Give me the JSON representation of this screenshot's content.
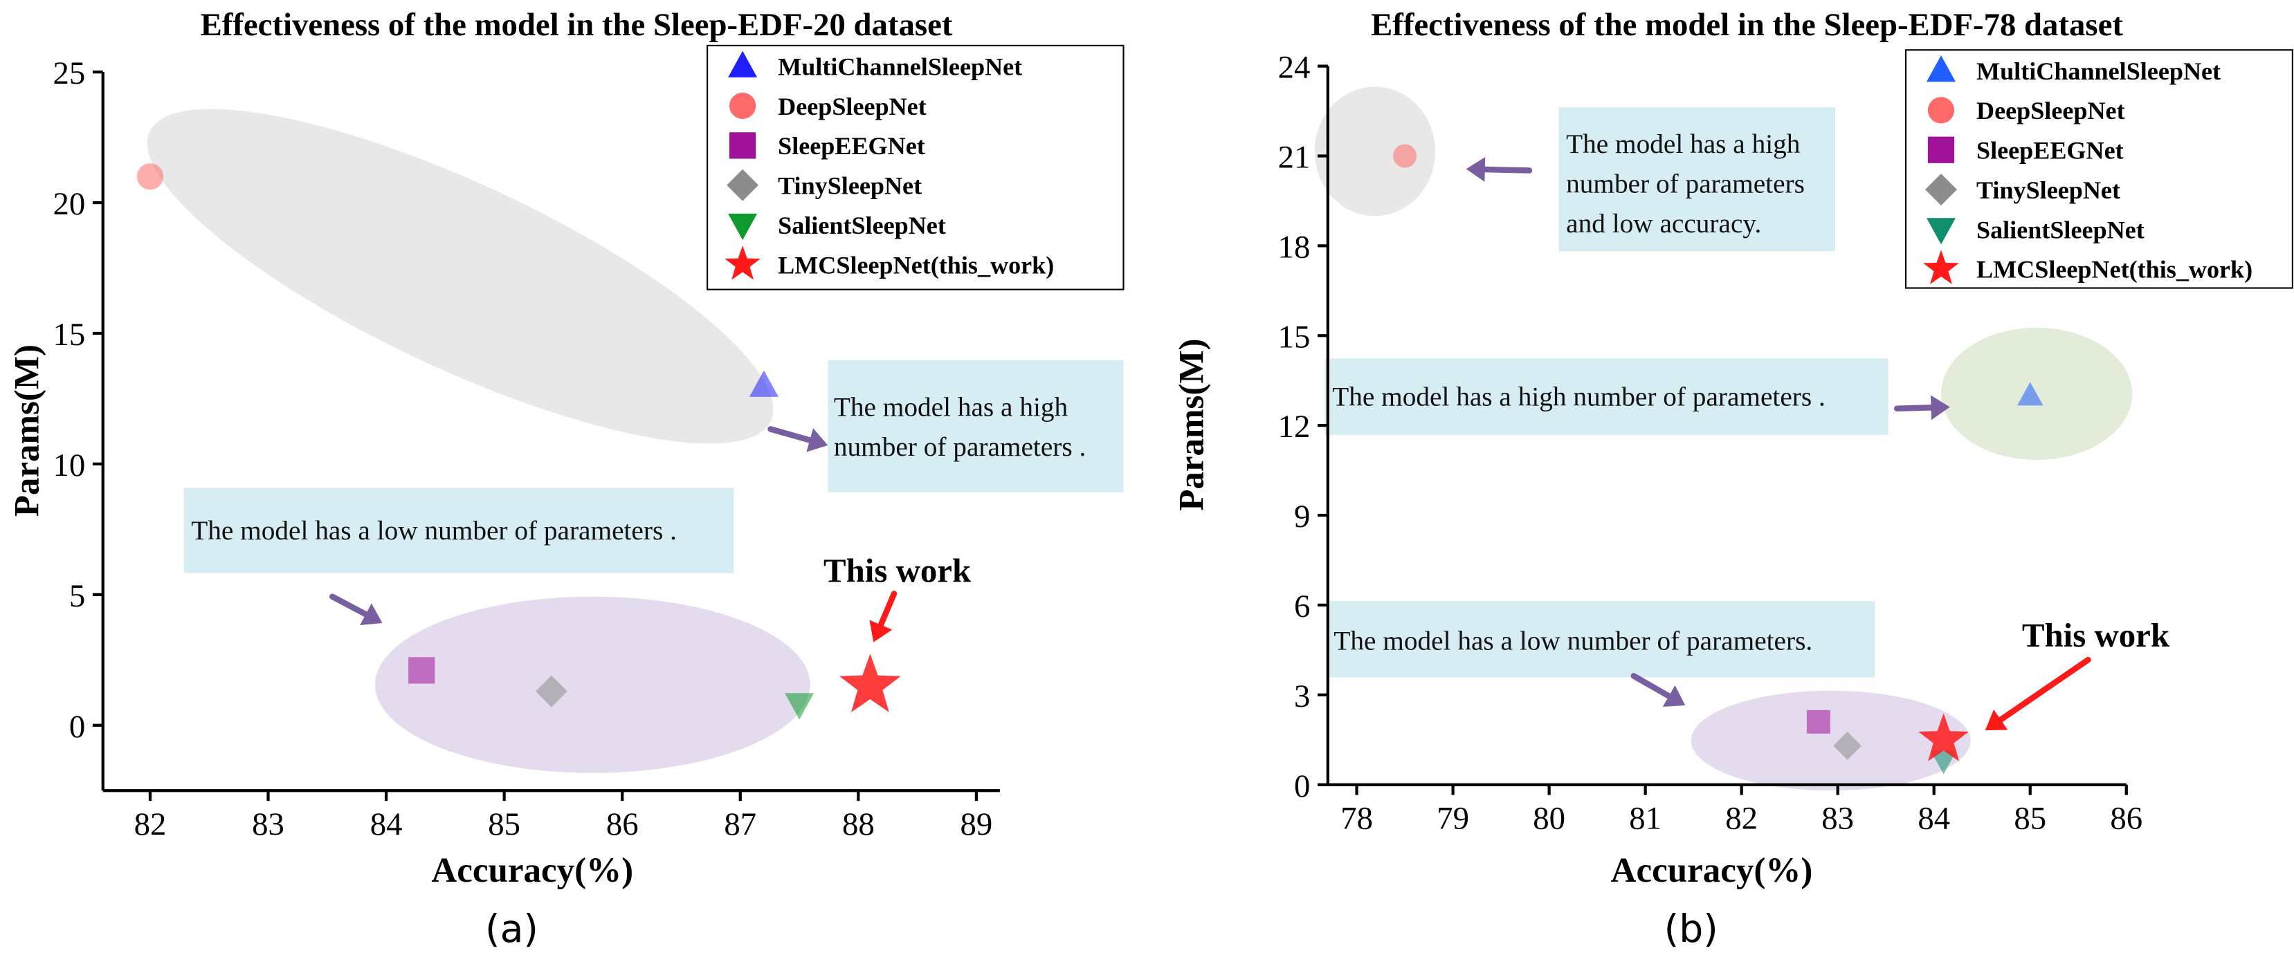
{
  "chart_data": [
    {
      "type": "scatter",
      "panel_label": "(a)",
      "title": "Effectiveness of the model in the Sleep-EDF-20 dataset",
      "xlabel": "Accuracy(%)",
      "ylabel": "Params(M)",
      "xlim": [
        81.6,
        89.2
      ],
      "ylim": [
        -2.5,
        25
      ],
      "xticks": [
        82,
        83,
        84,
        85,
        86,
        87,
        88,
        89
      ],
      "yticks": [
        0,
        5,
        10,
        15,
        20,
        25
      ],
      "grid": false,
      "legend_position": "top-right",
      "series": [
        {
          "name": "MultiChannelSleepNet",
          "marker": "triangle-up",
          "color": "#1f1fff",
          "x": 87.2,
          "y": 13.0
        },
        {
          "name": "DeepSleepNet",
          "marker": "circle",
          "color": "#ff6b6b",
          "x": 82.0,
          "y": 21.0
        },
        {
          "name": "SleepEEGNet",
          "marker": "square",
          "color": "#a0129a",
          "x": 84.3,
          "y": 2.1
        },
        {
          "name": "TinySleepNet",
          "marker": "diamond",
          "color": "#8c8c8c",
          "x": 85.4,
          "y": 1.3
        },
        {
          "name": "SalientSleepNet",
          "marker": "triangle-down",
          "color": "#0f9a2e",
          "x": 87.5,
          "y": 0.8
        },
        {
          "name": "LMCSleepNet(this_work)",
          "marker": "star",
          "color": "#ff1a1a",
          "x": 88.1,
          "y": 1.5
        }
      ],
      "annotations": [
        {
          "text": "The model has a high number of parameters .",
          "lines": [
            "The model has a high",
            "number of parameters ."
          ]
        },
        {
          "text": "The model has a low number of parameters .",
          "lines": [
            "The model has a low number of parameters ."
          ]
        },
        {
          "text": "This work",
          "lines": [
            "This work"
          ]
        }
      ]
    },
    {
      "type": "scatter",
      "panel_label": "(b)",
      "title": "Effectiveness of the model in the Sleep-EDF-78 dataset",
      "xlabel": "Accuracy(%)",
      "ylabel": "Params(M)",
      "xlim": [
        77.7,
        86.0
      ],
      "ylim": [
        0,
        24
      ],
      "xticks": [
        78,
        79,
        80,
        81,
        82,
        83,
        84,
        85,
        86
      ],
      "yticks": [
        0,
        3,
        6,
        9,
        12,
        15,
        18,
        21,
        24
      ],
      "grid": false,
      "legend_position": "top-right",
      "series": [
        {
          "name": "MultiChannelSleepNet",
          "marker": "triangle-up",
          "color": "#1f5fff",
          "x": 85.0,
          "y": 13.0
        },
        {
          "name": "DeepSleepNet",
          "marker": "circle",
          "color": "#ff6b6b",
          "x": 78.5,
          "y": 21.0
        },
        {
          "name": "SleepEEGNet",
          "marker": "square",
          "color": "#a0129a",
          "x": 82.8,
          "y": 2.1
        },
        {
          "name": "TinySleepNet",
          "marker": "diamond",
          "color": "#8c8c8c",
          "x": 83.1,
          "y": 1.3
        },
        {
          "name": "SalientSleepNet",
          "marker": "triangle-down",
          "color": "#0f8f6e",
          "x": 84.1,
          "y": 0.8
        },
        {
          "name": "LMCSleepNet(this_work)",
          "marker": "star",
          "color": "#ff1a1a",
          "x": 84.1,
          "y": 1.5
        }
      ],
      "annotations": [
        {
          "text": "The model has a high number of parameters and low accuracy.",
          "lines": [
            "The model has a high",
            "number of parameters",
            "and low accuracy."
          ]
        },
        {
          "text": "The model has a high number of parameters .",
          "lines": [
            "The model has a high number of parameters ."
          ]
        },
        {
          "text": "The model has a low number of parameters.",
          "lines": [
            "The model has a low number of parameters."
          ]
        },
        {
          "text": "This work",
          "lines": [
            "This work"
          ]
        }
      ]
    }
  ]
}
